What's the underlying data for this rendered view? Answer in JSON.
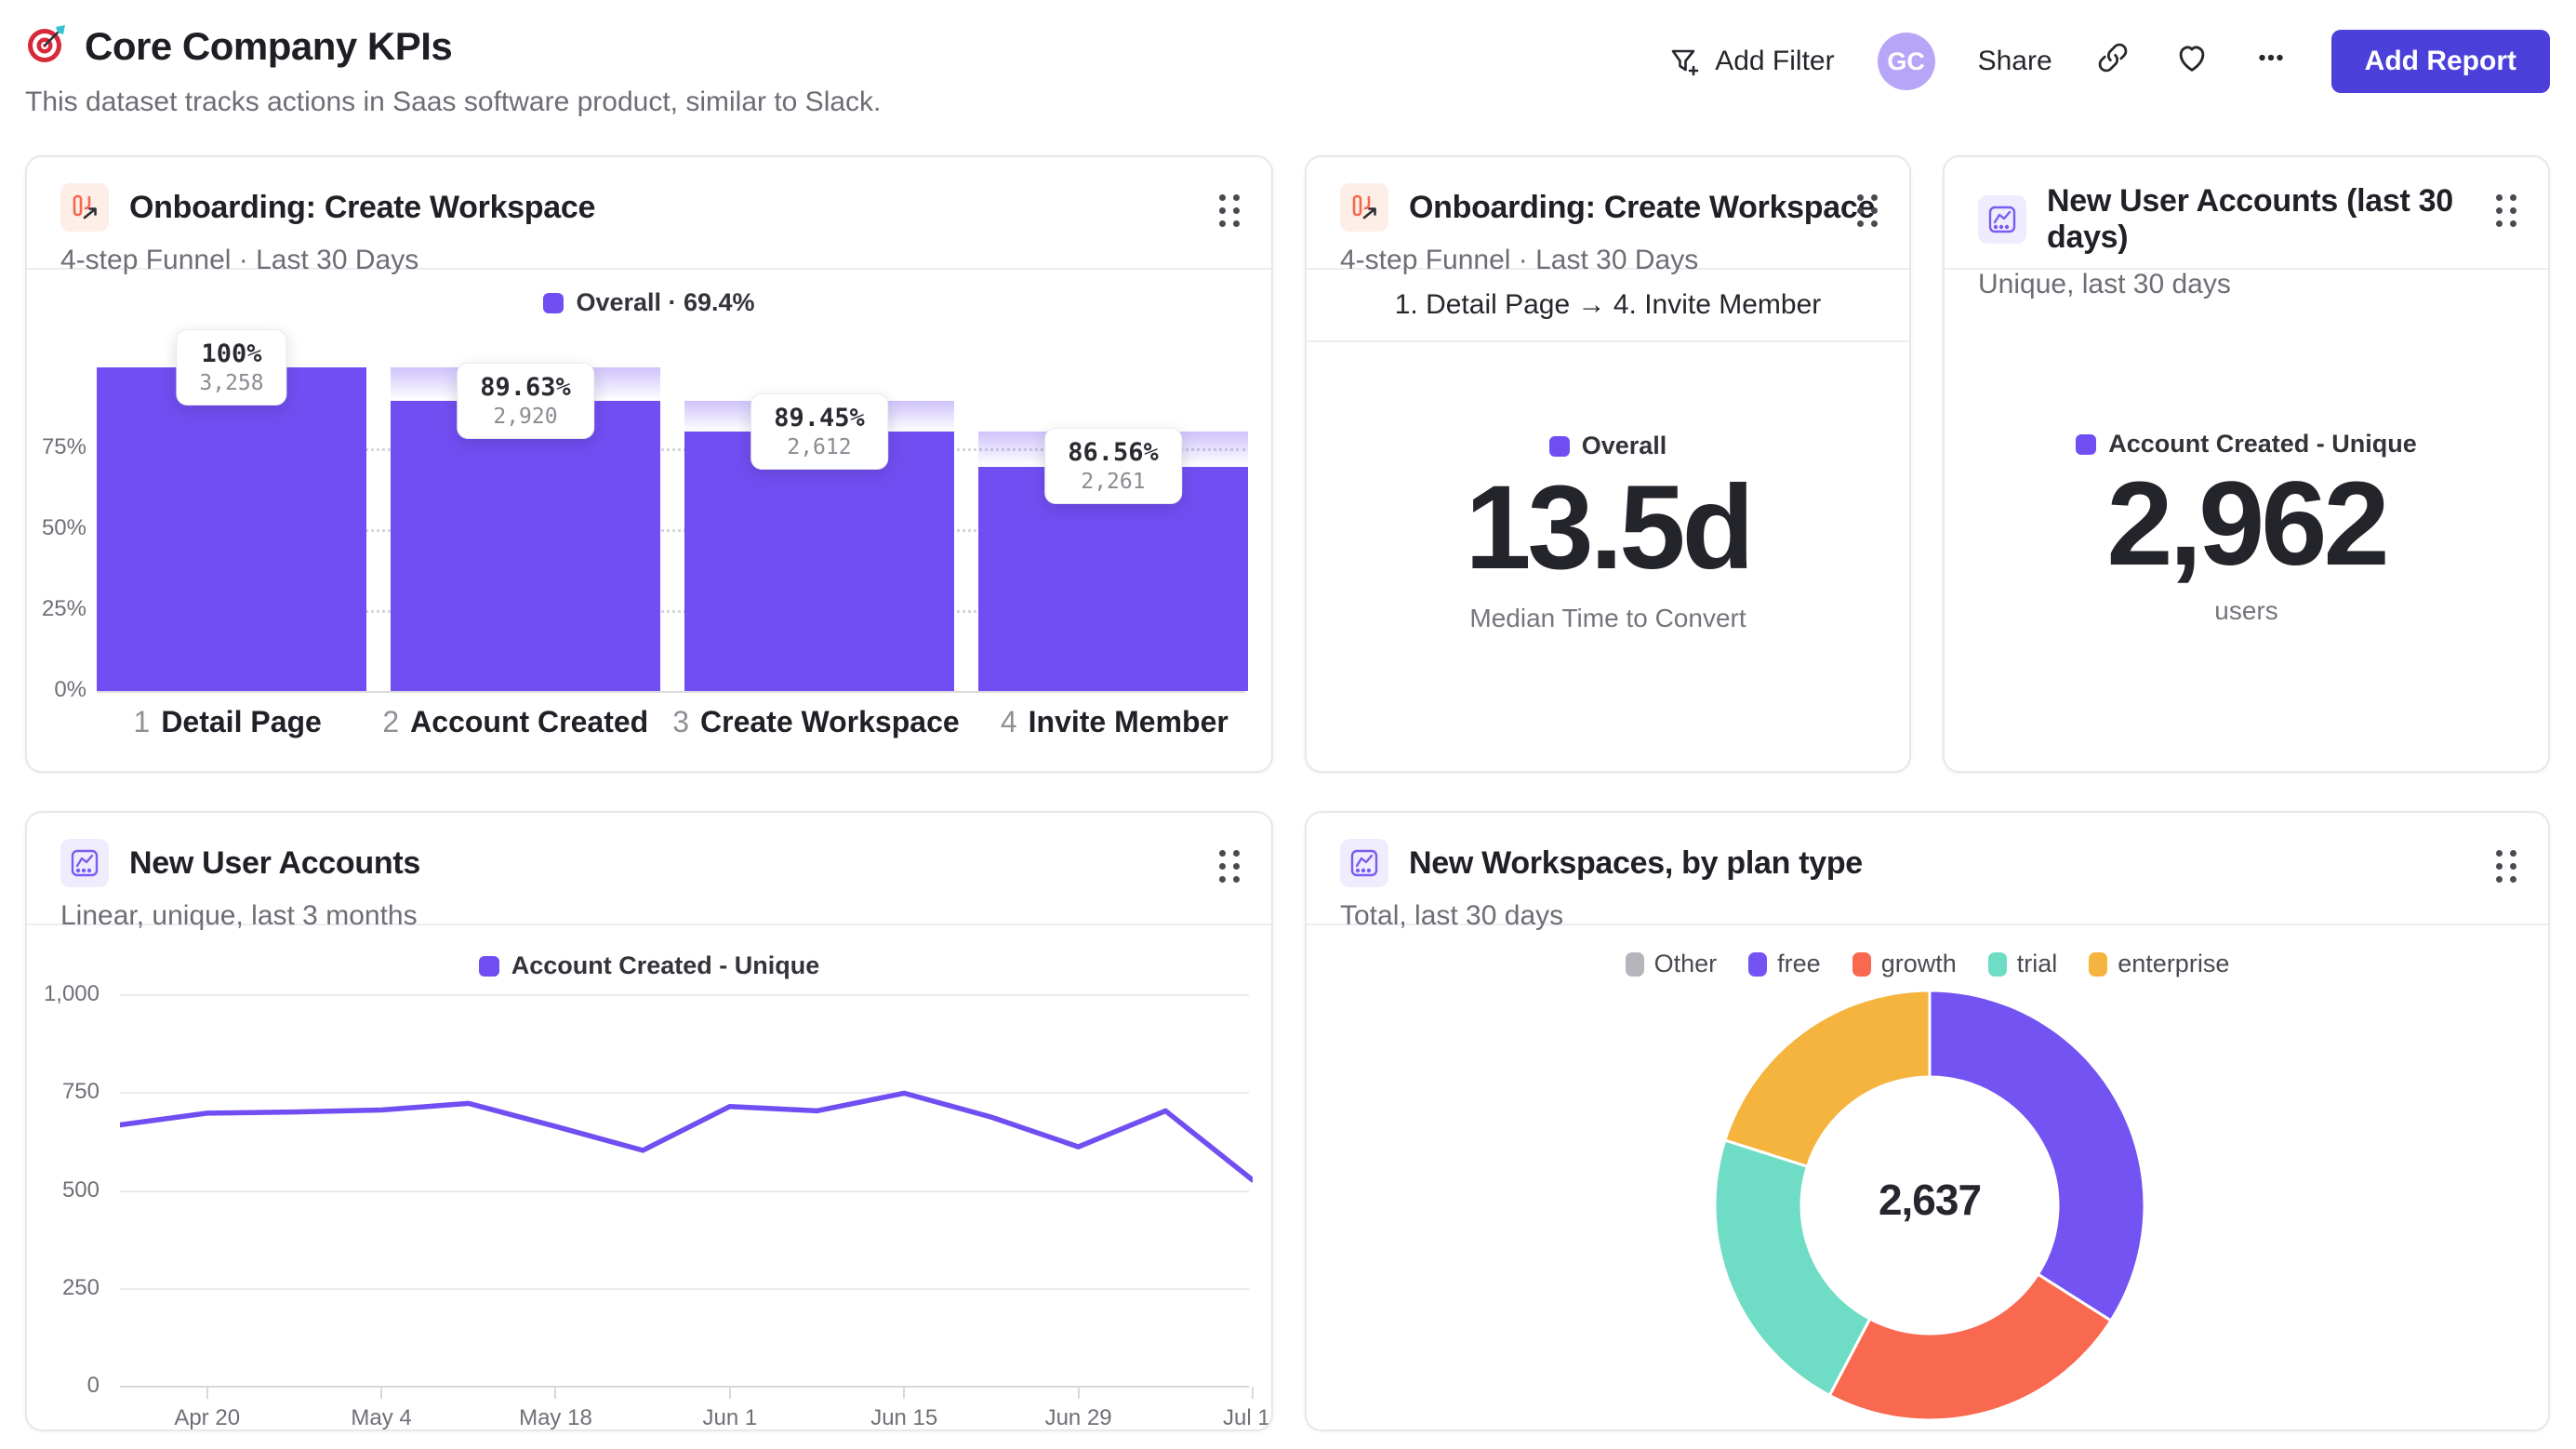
{
  "colors": {
    "accent_purple": "#714ef2",
    "fade_purple_top": "rgba(113,78,242,0.34)",
    "fade_purple_bottom": "rgba(113,78,242,0)",
    "button_indigo": "#4c40da",
    "avatar_purple": "#b7a6f8",
    "donut_free": "#7453f3",
    "donut_growth": "#f8694f",
    "donut_trial": "#6fdcc5",
    "donut_enterprise": "#f5b43d",
    "donut_other": "#b5b5bb"
  },
  "header": {
    "title": "Core Company KPIs",
    "title_icon": "dart-target-emoji",
    "subtitle": "This dataset tracks actions in Saas software product, similar to Slack.",
    "add_filter_label": "Add Filter",
    "avatar_initials": "GC",
    "share_label": "Share",
    "add_report_label": "Add Report"
  },
  "cards": {
    "funnel": {
      "title": "Onboarding: Create Workspace",
      "subtitle": "4-step Funnel · Last 30 Days",
      "legend": "Overall · 69.4%",
      "chart_data": {
        "type": "bar",
        "subtype": "funnel",
        "title": "Onboarding: Create Workspace",
        "y_ticks": [
          {
            "label": "75%",
            "pct": 75
          },
          {
            "label": "50%",
            "pct": 50
          },
          {
            "label": "25%",
            "pct": 25
          },
          {
            "label": "0%",
            "pct": 0
          }
        ],
        "y_gridlines_pct": [
          75,
          50,
          25
        ],
        "overall_conversion": "69.4%",
        "steps": [
          {
            "num": "1",
            "label": "Detail Page",
            "conversion": "100%",
            "count": "3,258",
            "bar_pct": 100,
            "fade_from_pct": 100
          },
          {
            "num": "2",
            "label": "Account Created",
            "conversion": "89.63%",
            "count": "2,920",
            "bar_pct": 89.6,
            "fade_from_pct": 100
          },
          {
            "num": "3",
            "label": "Create Workspace",
            "conversion": "89.45%",
            "count": "2,612",
            "bar_pct": 80.2,
            "fade_from_pct": 89.6
          },
          {
            "num": "4",
            "label": "Invite Member",
            "conversion": "86.56%",
            "count": "2,261",
            "bar_pct": 69.4,
            "fade_from_pct": 80.2
          }
        ]
      }
    },
    "time_to_convert": {
      "title": "Onboarding: Create Workspace",
      "subtitle": "4-step Funnel · Last 30 Days",
      "range": "1. Detail Page → 4. Invite Member",
      "legend": "Overall",
      "value": "13.5d",
      "caption": "Median Time to Convert"
    },
    "new_accounts_30d": {
      "title": "New User Accounts (last 30 days)",
      "subtitle": "Unique, last 30 days",
      "legend": "Account Created - Unique",
      "value": "2,962",
      "caption": "users"
    },
    "accounts_trend": {
      "title": "New User Accounts",
      "subtitle": "Linear, unique, last 3 months",
      "legend": "Account Created - Unique",
      "chart_data": {
        "type": "line",
        "series_name": "Account Created - Unique",
        "ylim": [
          0,
          1000
        ],
        "y_ticks": [
          {
            "label": "0",
            "v": 0
          },
          {
            "label": "250",
            "v": 250
          },
          {
            "label": "500",
            "v": 500
          },
          {
            "label": "750",
            "v": 750
          },
          {
            "label": "1,000",
            "v": 1000
          }
        ],
        "x_week_start": "Apr 13",
        "values": [
          671,
          701,
          704,
          709,
          726,
          667,
          606,
          718,
          707,
          752,
          691,
          615,
          707,
          530
        ],
        "x_ticks": [
          {
            "label": "Apr 20",
            "index": 1
          },
          {
            "label": "May 4",
            "index": 3
          },
          {
            "label": "May 18",
            "index": 5
          },
          {
            "label": "Jun 1",
            "index": 7
          },
          {
            "label": "Jun 15",
            "index": 9
          },
          {
            "label": "Jun 29",
            "index": 11
          },
          {
            "label": "Jul 13",
            "index": 13
          }
        ]
      }
    },
    "workspaces_by_plan": {
      "title": "New Workspaces, by plan type",
      "subtitle": "Total, last 30 days",
      "total": "2,637",
      "legend": [
        {
          "label": "Other",
          "color": "#b5b5bb"
        },
        {
          "label": "free",
          "color": "#7453f3"
        },
        {
          "label": "growth",
          "color": "#f8694f"
        },
        {
          "label": "trial",
          "color": "#6fdcc5"
        },
        {
          "label": "enterprise",
          "color": "#f5b43d"
        }
      ],
      "chart_data": {
        "type": "pie",
        "subtype": "donut",
        "total": 2637,
        "segments": [
          {
            "label": "free",
            "value": 897,
            "color": "#7453f3"
          },
          {
            "label": "growth",
            "value": 625,
            "color": "#f8694f"
          },
          {
            "label": "trial",
            "value": 585,
            "color": "#6fdcc5"
          },
          {
            "label": "enterprise",
            "value": 530,
            "color": "#f5b43d"
          },
          {
            "label": "Other",
            "value": 0,
            "color": "#b5b5bb"
          }
        ]
      }
    }
  }
}
